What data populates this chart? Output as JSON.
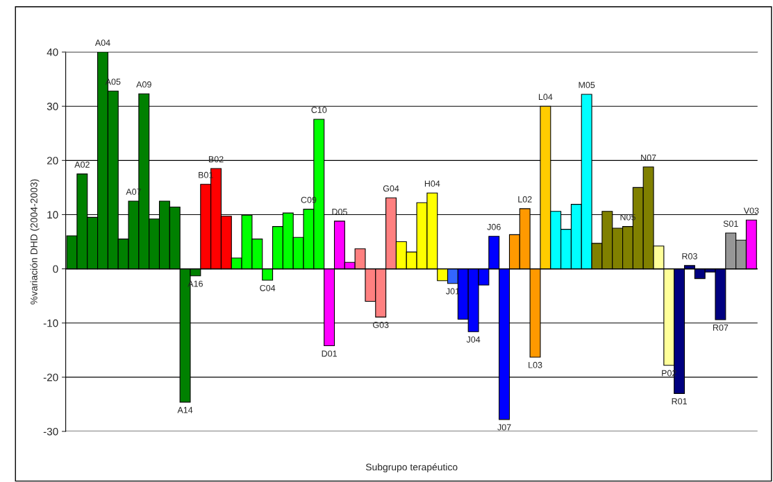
{
  "chart_data": {
    "type": "bar",
    "xlabel": "Subgrupo terapéutico",
    "ylabel": "%variación DHD (2004-2003)",
    "categories": [
      null,
      "A02",
      null,
      "A04",
      "A05",
      null,
      "A07",
      "A09",
      null,
      null,
      null,
      "A14",
      "A16",
      "B01",
      "B02",
      null,
      null,
      null,
      null,
      "C04",
      null,
      null,
      null,
      "C09",
      "C10",
      "D01",
      "D05",
      null,
      null,
      null,
      "G03",
      "G04",
      null,
      null,
      null,
      "H04",
      null,
      "J01",
      null,
      "J04",
      null,
      "J06",
      "J07",
      null,
      "L02",
      "L03",
      "L04",
      null,
      null,
      null,
      "M05",
      null,
      null,
      null,
      "N05",
      null,
      "N07",
      null,
      "P02",
      "R01",
      "R03",
      null,
      null,
      "R07",
      "S01",
      null,
      "V03"
    ],
    "values": [
      6.1,
      17.5,
      9.5,
      40,
      32.8,
      5.5,
      12.5,
      32.3,
      9.2,
      12.5,
      11.4,
      -24.6,
      -1.3,
      15.6,
      18.5,
      9.7,
      2.0,
      9.9,
      5.5,
      -2.1,
      7.8,
      10.3,
      5.8,
      11.0,
      27.6,
      -14.2,
      8.8,
      1.2,
      3.7,
      -6.0,
      -8.9,
      13.1,
      5.0,
      3.1,
      12.2,
      14.0,
      -2.2,
      -2.7,
      -9.3,
      -11.6,
      -3.0,
      6.0,
      -27.8,
      6.3,
      11.1,
      -16.3,
      30.0,
      10.6,
      7.3,
      11.9,
      32.2,
      4.7,
      10.6,
      7.5,
      7.8,
      15.0,
      18.8,
      4.2,
      -17.8,
      -23.0,
      0.6,
      -1.8,
      -0.6,
      -9.4,
      6.6,
      5.3,
      9.0
    ],
    "colors": [
      "#008000",
      "#008000",
      "#008000",
      "#008000",
      "#008000",
      "#008000",
      "#008000",
      "#008000",
      "#008000",
      "#008000",
      "#008000",
      "#008000",
      "#008000",
      "#ff0000",
      "#ff0000",
      "#ff0000",
      "#00ff00",
      "#00ff00",
      "#00ff00",
      "#00ff00",
      "#00ff00",
      "#00ff00",
      "#00ff00",
      "#00ff00",
      "#00ff00",
      "#ff00ff",
      "#ff00ff",
      "#ff00ff",
      "#ff8080",
      "#ff8080",
      "#ff8080",
      "#ff8080",
      "#ffff00",
      "#ffff00",
      "#ffff00",
      "#ffff00",
      "#ffff00",
      "#3366ff",
      "#0000ff",
      "#0000ff",
      "#0000ff",
      "#0000ff",
      "#0000ff",
      "#ff9900",
      "#ff9900",
      "#ff9900",
      "#ffcc00",
      "#00ffff",
      "#00ffff",
      "#00ffff",
      "#00ffff",
      "#808000",
      "#808000",
      "#808000",
      "#808000",
      "#808000",
      "#808000",
      "#ffff99",
      "#ffff99",
      "#000080",
      "#000080",
      "#000080",
      "#000080",
      "#000080",
      "#969696",
      "#969696",
      "#ff00ff"
    ],
    "ylim": [
      -30,
      40
    ],
    "yticks": [
      -30,
      -20,
      -10,
      0,
      10,
      20,
      30,
      40
    ],
    "grid": "y",
    "tick_labels": "y"
  }
}
